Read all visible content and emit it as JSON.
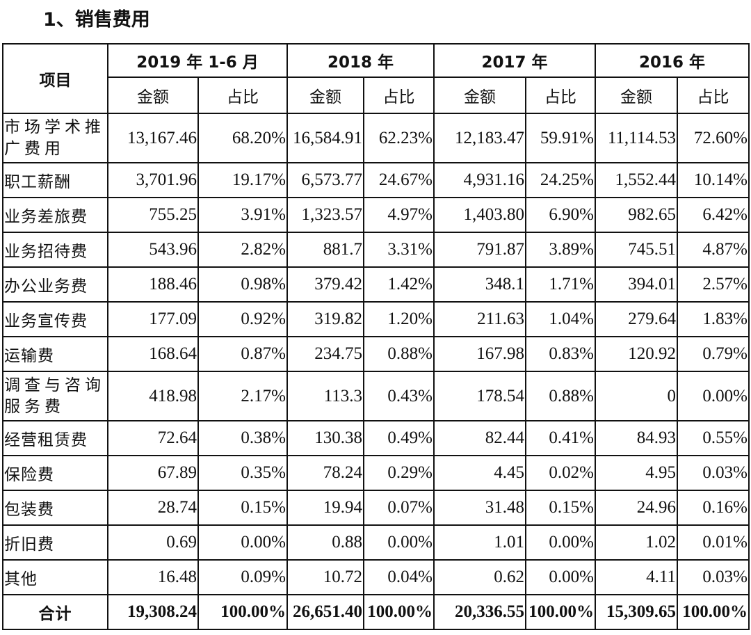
{
  "title": "1、销售费用",
  "table": {
    "item_header": "项目",
    "years": [
      "2019 年 1-6 月",
      "2018 年",
      "2017 年",
      "2016 年"
    ],
    "sub_headers": [
      "金额",
      "占比"
    ],
    "rows": [
      {
        "item": "市场学术推广费用",
        "v": [
          "13,167.46",
          "68.20%",
          "16,584.91",
          "62.23%",
          "12,183.47",
          "59.91%",
          "11,114.53",
          "72.60%"
        ]
      },
      {
        "item": "职工薪酬",
        "v": [
          "3,701.96",
          "19.17%",
          "6,573.77",
          "24.67%",
          "4,931.16",
          "24.25%",
          "1,552.44",
          "10.14%"
        ]
      },
      {
        "item": "业务差旅费",
        "v": [
          "755.25",
          "3.91%",
          "1,323.57",
          "4.97%",
          "1,403.80",
          "6.90%",
          "982.65",
          "6.42%"
        ]
      },
      {
        "item": "业务招待费",
        "v": [
          "543.96",
          "2.82%",
          "881.7",
          "3.31%",
          "791.87",
          "3.89%",
          "745.51",
          "4.87%"
        ]
      },
      {
        "item": "办公业务费",
        "v": [
          "188.46",
          "0.98%",
          "379.42",
          "1.42%",
          "348.1",
          "1.71%",
          "394.01",
          "2.57%"
        ]
      },
      {
        "item": "业务宣传费",
        "v": [
          "177.09",
          "0.92%",
          "319.82",
          "1.20%",
          "211.63",
          "1.04%",
          "279.64",
          "1.83%"
        ]
      },
      {
        "item": "运输费",
        "v": [
          "168.64",
          "0.87%",
          "234.75",
          "0.88%",
          "167.98",
          "0.83%",
          "120.92",
          "0.79%"
        ]
      },
      {
        "item": "调查与咨询服务费",
        "v": [
          "418.98",
          "2.17%",
          "113.3",
          "0.43%",
          "178.54",
          "0.88%",
          "0",
          "0.00%"
        ]
      },
      {
        "item": "经营租赁费",
        "v": [
          "72.64",
          "0.38%",
          "130.38",
          "0.49%",
          "82.44",
          "0.41%",
          "84.93",
          "0.55%"
        ]
      },
      {
        "item": "保险费",
        "v": [
          "67.89",
          "0.35%",
          "78.24",
          "0.29%",
          "4.45",
          "0.02%",
          "4.95",
          "0.03%"
        ]
      },
      {
        "item": "包装费",
        "v": [
          "28.74",
          "0.15%",
          "19.94",
          "0.07%",
          "31.48",
          "0.15%",
          "24.96",
          "0.16%"
        ]
      },
      {
        "item": "折旧费",
        "v": [
          "0.69",
          "0.00%",
          "0.88",
          "0.00%",
          "1.01",
          "0.00%",
          "1.02",
          "0.01%"
        ]
      },
      {
        "item": "其他",
        "v": [
          "16.48",
          "0.09%",
          "10.72",
          "0.04%",
          "0.62",
          "0.00%",
          "4.11",
          "0.03%"
        ]
      }
    ],
    "total": {
      "item": "合计",
      "v": [
        "19,308.24",
        "100.00%",
        "26,651.40",
        "100.00%",
        "20,336.55",
        "100.00%",
        "15,309.65",
        "100.00%"
      ]
    }
  }
}
